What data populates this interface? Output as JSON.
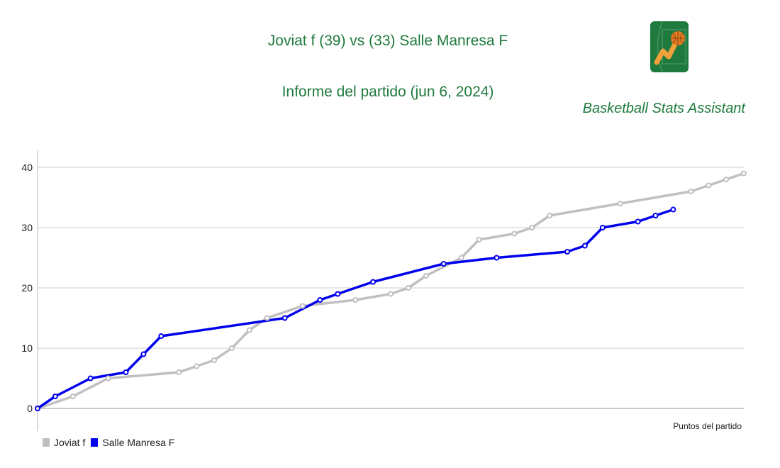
{
  "header": {
    "title": "Joviat f (39) vs (33) Salle Manresa F",
    "subtitle": "Informe del partido (jun 6, 2024)",
    "brand": "Basketball Stats Assistant",
    "logo_icon": "basketball-chart-logo"
  },
  "chart_data": {
    "type": "line",
    "title": "Joviat f (39) vs (33) Salle Manresa F",
    "xlabel": "Puntos del partido",
    "ylabel": "",
    "xlim": [
      0,
      40
    ],
    "ylim": [
      0,
      40
    ],
    "yticks": [
      "0",
      "10",
      "20",
      "30",
      "40"
    ],
    "grid": true,
    "legend_position": "bottom-left",
    "series": [
      {
        "name": "Joviat f",
        "color": "#c0c0c0",
        "x": [
          0,
          2,
          4,
          8,
          9,
          10,
          11,
          12,
          13,
          15,
          18,
          20,
          21,
          22,
          24,
          25,
          27,
          28,
          29,
          33,
          37,
          38,
          39,
          40
        ],
        "y": [
          0,
          2,
          5,
          6,
          7,
          8,
          10,
          13,
          15,
          17,
          18,
          19,
          20,
          22,
          25,
          28,
          29,
          30,
          32,
          34,
          36,
          37,
          38,
          39
        ]
      },
      {
        "name": "Salle Manresa F",
        "color": "#0000ee",
        "x": [
          0,
          1,
          3,
          5,
          6,
          7,
          14,
          16,
          17,
          19,
          23,
          26,
          30,
          31,
          32,
          34,
          35,
          36
        ],
        "y": [
          0,
          2,
          5,
          6,
          9,
          12,
          15,
          18,
          19,
          21,
          24,
          25,
          26,
          27,
          30,
          31,
          32,
          33
        ]
      }
    ]
  }
}
